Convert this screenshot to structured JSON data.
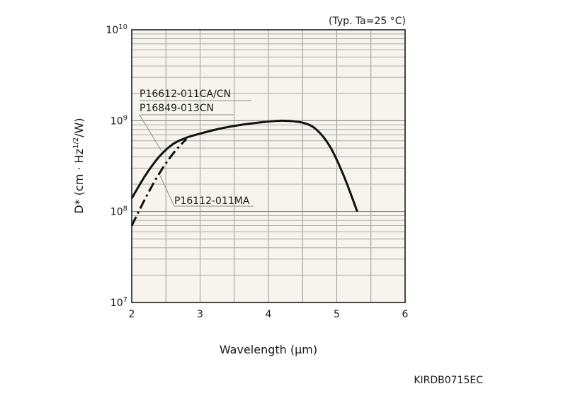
{
  "chart_data": {
    "type": "line",
    "note": "(Typ. Ta=25 °C)",
    "xlabel": "Wavelength (μm)",
    "ylabel_parts": [
      "D* (cm · Hz",
      "1/2",
      "/W)"
    ],
    "xlim": [
      2,
      6
    ],
    "ylim": [
      10000000,
      10000000000
    ],
    "yscale": "log",
    "grid": true,
    "x_ticks": [
      2,
      3,
      4,
      5,
      6
    ],
    "x_tick_labels": [
      "2",
      "3",
      "4",
      "5",
      "6"
    ],
    "y_ticks": [
      {
        "value": 10000000,
        "base": "10",
        "exp": "7"
      },
      {
        "value": 100000000,
        "base": "10",
        "exp": "8"
      },
      {
        "value": 1000000000,
        "base": "10",
        "exp": "9"
      },
      {
        "value": 10000000000,
        "base": "10",
        "exp": "10"
      }
    ],
    "series": [
      {
        "name": "P16612-011CA/CN",
        "name2": "P16849-013CN",
        "style": "solid",
        "points": [
          [
            2.0,
            140000000
          ],
          [
            2.2,
            250000000
          ],
          [
            2.4,
            400000000
          ],
          [
            2.6,
            550000000
          ],
          [
            2.8,
            650000000
          ],
          [
            3.0,
            720000000
          ],
          [
            3.3,
            820000000
          ],
          [
            3.6,
            900000000
          ],
          [
            3.9,
            960000000
          ],
          [
            4.2,
            1000000000
          ],
          [
            4.5,
            950000000
          ],
          [
            4.7,
            800000000
          ],
          [
            4.9,
            520000000
          ],
          [
            5.1,
            250000000
          ],
          [
            5.3,
            100000000
          ]
        ]
      },
      {
        "name": "P16112-011MA",
        "style": "dashdot",
        "points": [
          [
            2.0,
            70000000
          ],
          [
            2.2,
            140000000
          ],
          [
            2.4,
            260000000
          ],
          [
            2.6,
            430000000
          ],
          [
            2.8,
            630000000
          ]
        ]
      }
    ],
    "annotations": [
      "P16612-011CA/CN",
      "P16849-013CN",
      "P16112-011MA"
    ],
    "code": "KIRDB0715EC"
  }
}
